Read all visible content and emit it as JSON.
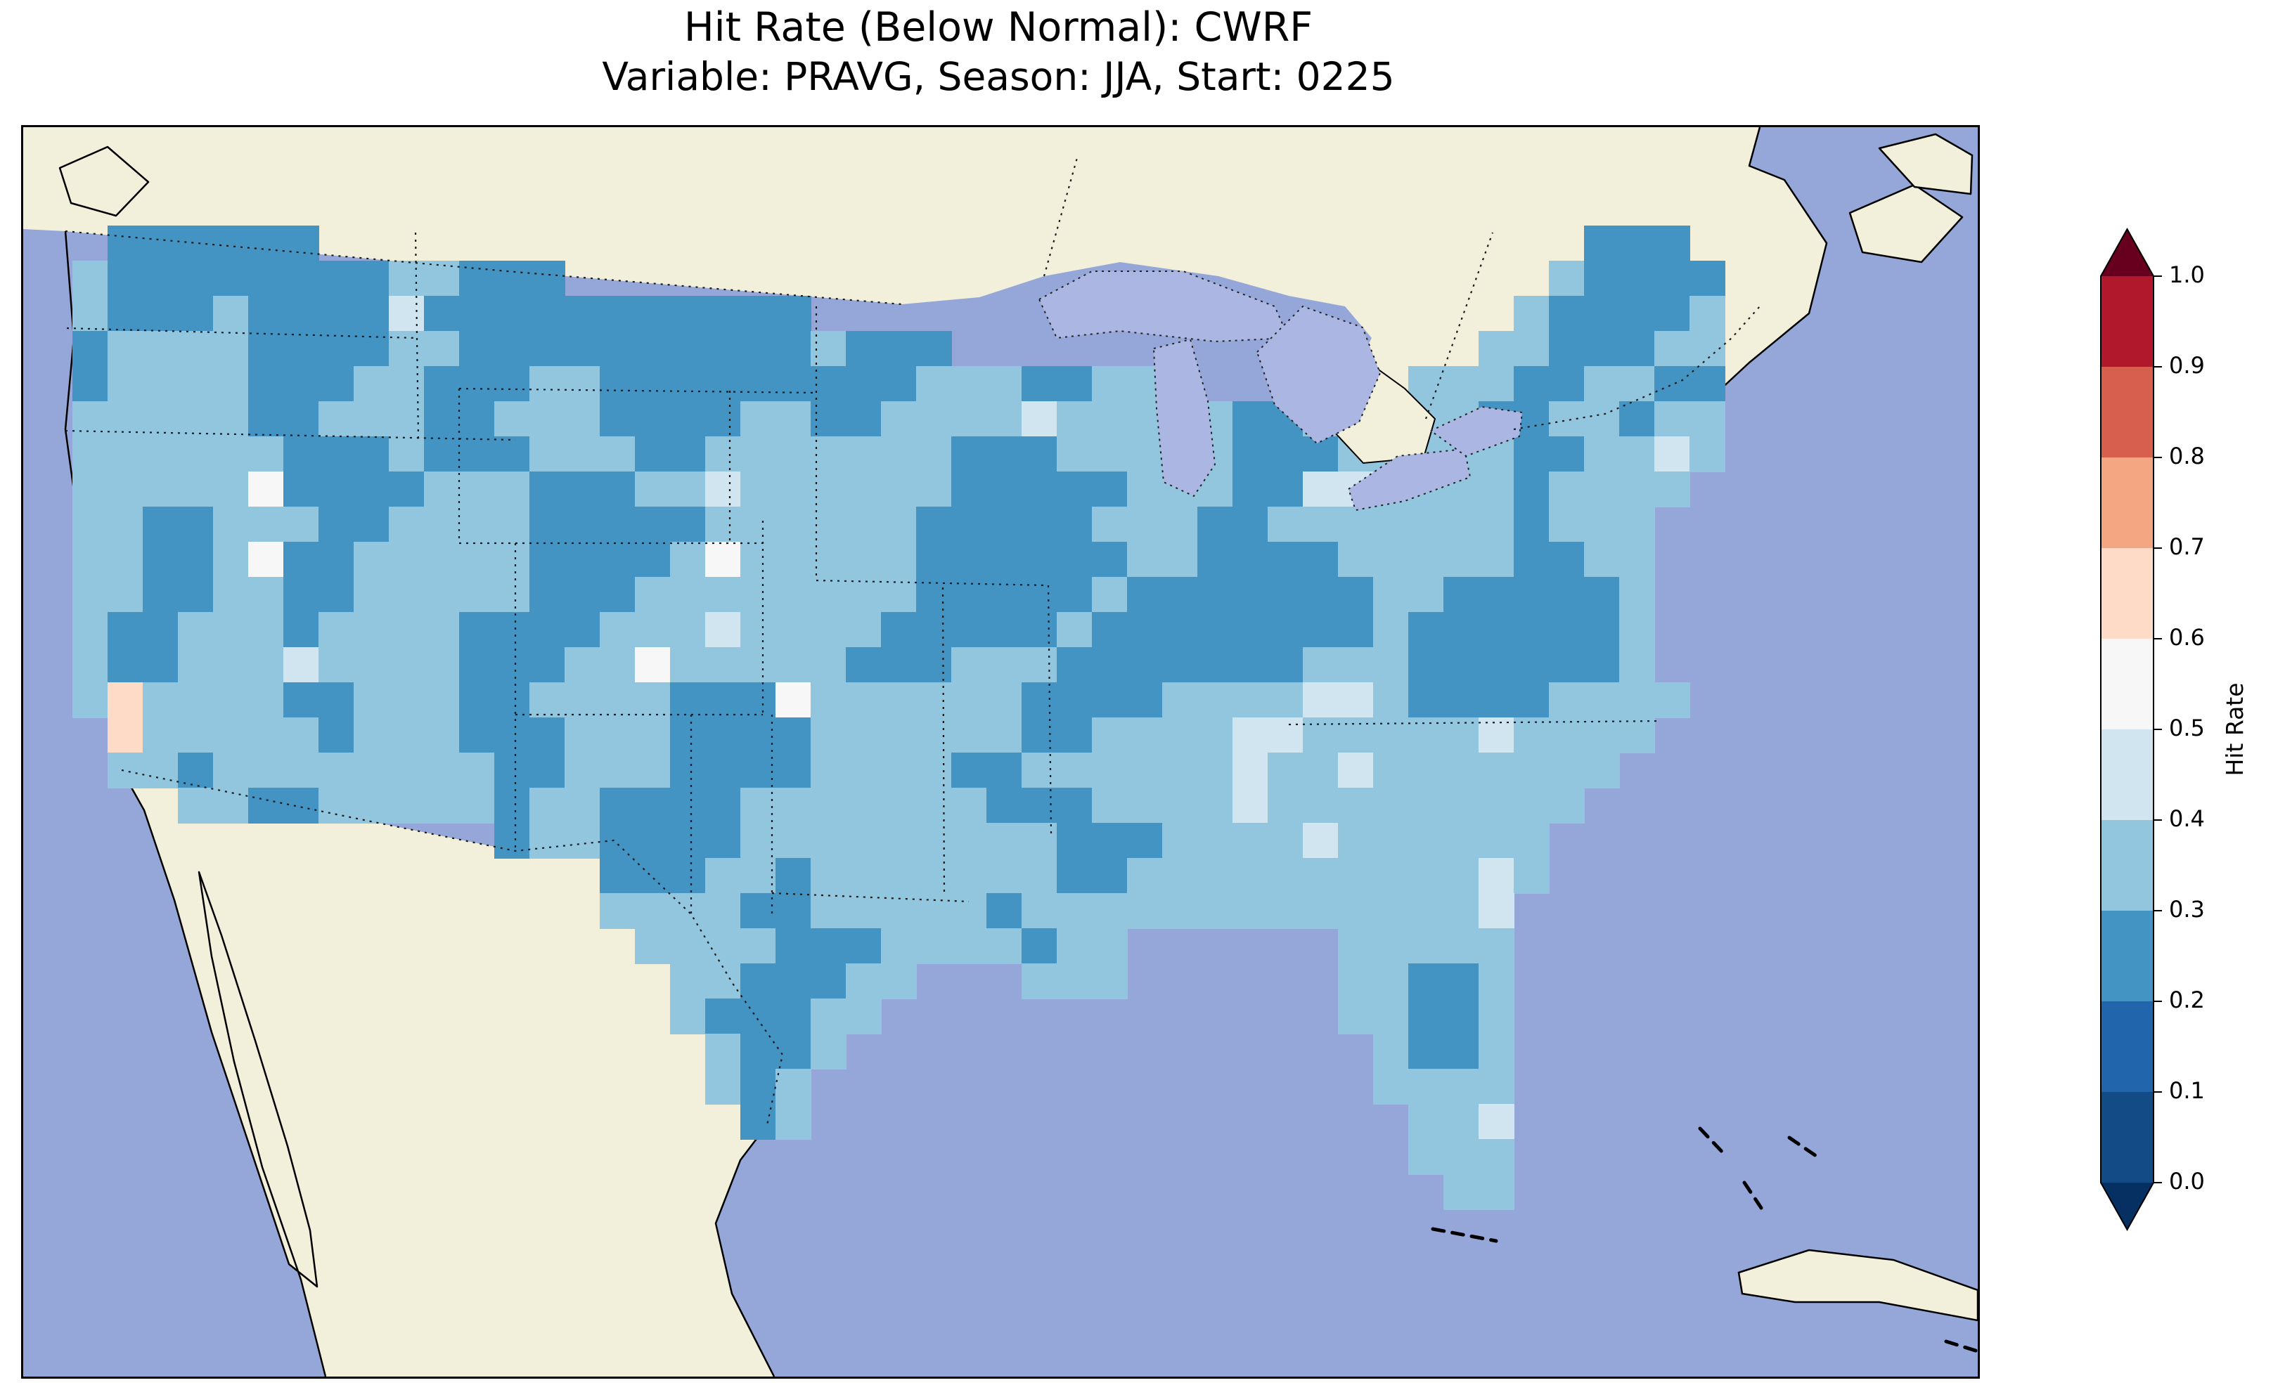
{
  "chart_data": {
    "type": "heatmap",
    "title": "Hit Rate (Below Normal): CWRF",
    "subtitle": "Variable: PRAVG, Season: JJA, Start: 0225",
    "metric": "Hit Rate",
    "tercile_category": "Below Normal",
    "model": "CWRF",
    "variable": "PRAVG",
    "season": "JJA",
    "start": "0225",
    "region": "Contiguous United States",
    "colorbar": {
      "label": "Hit Rate",
      "tick_labels_top_to_bottom": [
        "1.0",
        "0.9",
        "0.8",
        "0.7",
        "0.6",
        "0.5",
        "0.4",
        "0.3",
        "0.2",
        "0.1",
        "0.0"
      ],
      "segment_colors_top_to_bottom": [
        "#b2182b",
        "#d6604d",
        "#f4a582",
        "#fddbc7",
        "#f7f7f7",
        "#d1e5f0",
        "#92c5de",
        "#4393c3",
        "#2166ac",
        "#134b87"
      ],
      "over_arrow_color": "#67001f",
      "under_arrow_color": "#053061",
      "extend": "both"
    },
    "value_bins": {
      "2": {
        "hit_rate_range": [
          0.2,
          0.3
        ],
        "color": "#4393c3"
      },
      "3": {
        "hit_rate_range": [
          0.3,
          0.4
        ],
        "color": "#92c5de"
      },
      "4": {
        "hit_rate_range": [
          0.4,
          0.5
        ],
        "color": "#d1e5f0"
      },
      "5": {
        "hit_rate_range": [
          0.5,
          0.6
        ],
        "color": "#f7f7f7"
      },
      "6": {
        "hit_rate_range": [
          0.6,
          0.7
        ],
        "color": "#fddbc7"
      }
    },
    "grid": {
      "cols": 48,
      "rows": 29,
      "encoding": "run-length tokens 'NxC' where N=count, C=bin char ('.'=no data)",
      "cells_rle": [
        "1x. 6x2 36x. 3x2 2x.",
        "1x3 8x2 2x3 3x2 28x. 1x3 4x2 1x.",
        "1x3 3x2 1x3 4x2 1x4 11x2 20x. 1x3 4x2 1x3 1x.",
        "1x2 4x3 4x2 2x3 10x2 1x3 3x2 15x. 2x3 3x2 2x3 1x.",
        "1x2 4x3 3x2 2x3 3x2 2x3 9x2 3x3 2x2 3x3 6x. 3x3 2x2 2x3 2x2 1x.",
        "5x3 2x2 3x3 2x2 3x3 4x2 2x3 2x2 4x3 1x4 5x3 2x2 5x3 2x2 2x3 1x2 2x3 1x.",
        "6x3 3x2 1x3 3x2 3x3 2x2 7x3 3x2 5x3 3x2 5x3 2x2 2x3 1x4 1x3 1x.",
        "5x3 1x5 4x2 3x3 3x2 2x3 1x4 6x3 5x2 3x3 2x2 2x4 4x3 1x2 4x3 2x.",
        "2x3 2x2 3x3 2x2 4x3 5x2 6x3 5x2 3x3 2x2 7x3 1x2 3x3 3x.",
        "2x3 2x2 1x3 1x5 2x2 5x3 4x2 1x3 1x5 5x3 6x2 2x3 4x2 5x3 2x2 2x3 3x.",
        "2x3 2x2 2x3 2x2 5x3 3x2 8x3 5x2 1x3 7x2 2x3 5x2 1x3 3x.",
        "1x3 2x2 3x3 1x2 4x3 4x2 3x3 1x4 4x3 5x2 1x3 8x2 1x3 6x2 1x3 3x.",
        "1x3 2x2 3x3 1x4 4x3 3x2 2x3 1x5 5x3 3x2 3x3 7x2 3x3 6x2 1x3 3x.",
        "1x3 1x6 4x3 2x2 3x3 2x2 4x3 3x2 1x5 6x3 4x2 4x3 2x4 1x3 4x2 4x3 2x.",
        "1x. 1x6 5x3 1x2 3x3 3x2 3x3 4x2 6x3 2x2 4x3 2x4 5x3 1x4 4x3 3x.",
        "1x. 2x3 1x2 8x3 2x2 3x3 4x2 4x3 2x2 6x3 1x4 2x3 1x4 7x3 4x.",
        "3x. 2x3 2x2 5x3 1x2 2x3 4x2 7x3 3x2 4x3 1x4 9x3 5x.",
        "12x. 1x2 2x3 4x2 9x3 3x2 4x3 1x4 6x3 6x.",
        "15x. 3x2 2x3 1x2 7x3 2x2 10x3 1x4 1x3 6x.",
        "15x. 4x3 2x2 5x3 1x2 13x3 1x4 7x.",
        "16x. 4x3 3x2 4x3 1x2 2x3 6x. 5x3 7x.",
        "17x. 2x3 3x2 2x3 3x. 3x3 6x. 2x3 2x2 1x3 7x.",
        "17x. 1x3 3x2 2x3 13x. 2x3 2x2 1x3 7x.",
        "18x. 1x3 2x2 1x3 15x. 1x3 2x2 1x3 7x.",
        "18x. 1x3 1x2 1x3 16x. 4x3 7x.",
        "19x. 1x2 1x3 17x. 2x3 1x4 7x.",
        "38x. 3x3 7x.",
        "39x. 2x3 7x.",
        "48x."
      ]
    },
    "dominant_hit_rate_range": "0.3-0.4"
  },
  "map": {
    "colors": {
      "ocean": "#95a7d8",
      "land_no_data": "#f2efdb",
      "lakes": "#abb7e2",
      "coastline": "#000000",
      "state_borders": "#1a1a1a",
      "frame": "#000000"
    },
    "features": [
      "us-canada-border",
      "us-mexico-border",
      "state-boundaries",
      "great-lakes",
      "baja-california",
      "cuba",
      "bahamas",
      "florida-keys",
      "nova-scotia",
      "vancouver-island"
    ]
  }
}
